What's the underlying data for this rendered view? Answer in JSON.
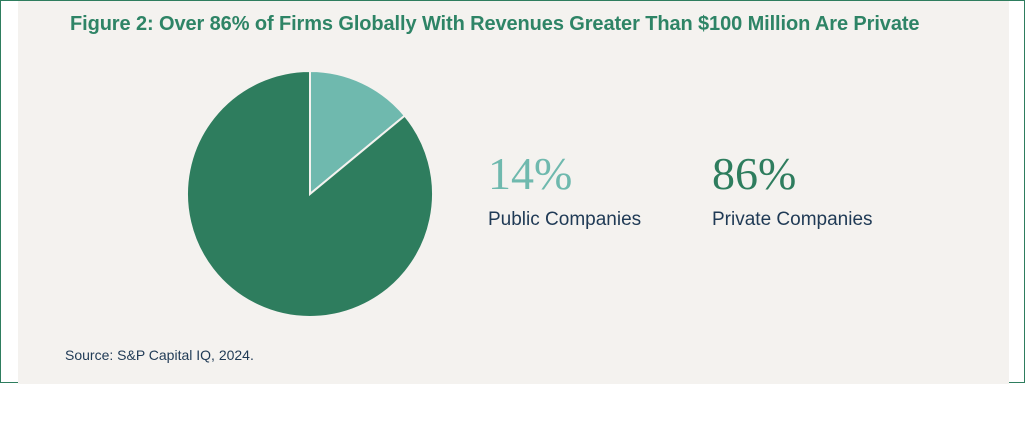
{
  "chart_data": {
    "type": "pie",
    "title": "Figure 2: Over 86% of Firms Globally With Revenues Greater Than $100 Million Are Private",
    "categories": [
      "Public Companies",
      "Private Companies"
    ],
    "values": [
      14,
      86
    ],
    "value_labels": [
      "14%",
      "86%"
    ],
    "colors": [
      "#6fb9ae",
      "#2e7d5e"
    ],
    "legend": "right",
    "source": "Source: S&P Capital IQ, 2024."
  }
}
